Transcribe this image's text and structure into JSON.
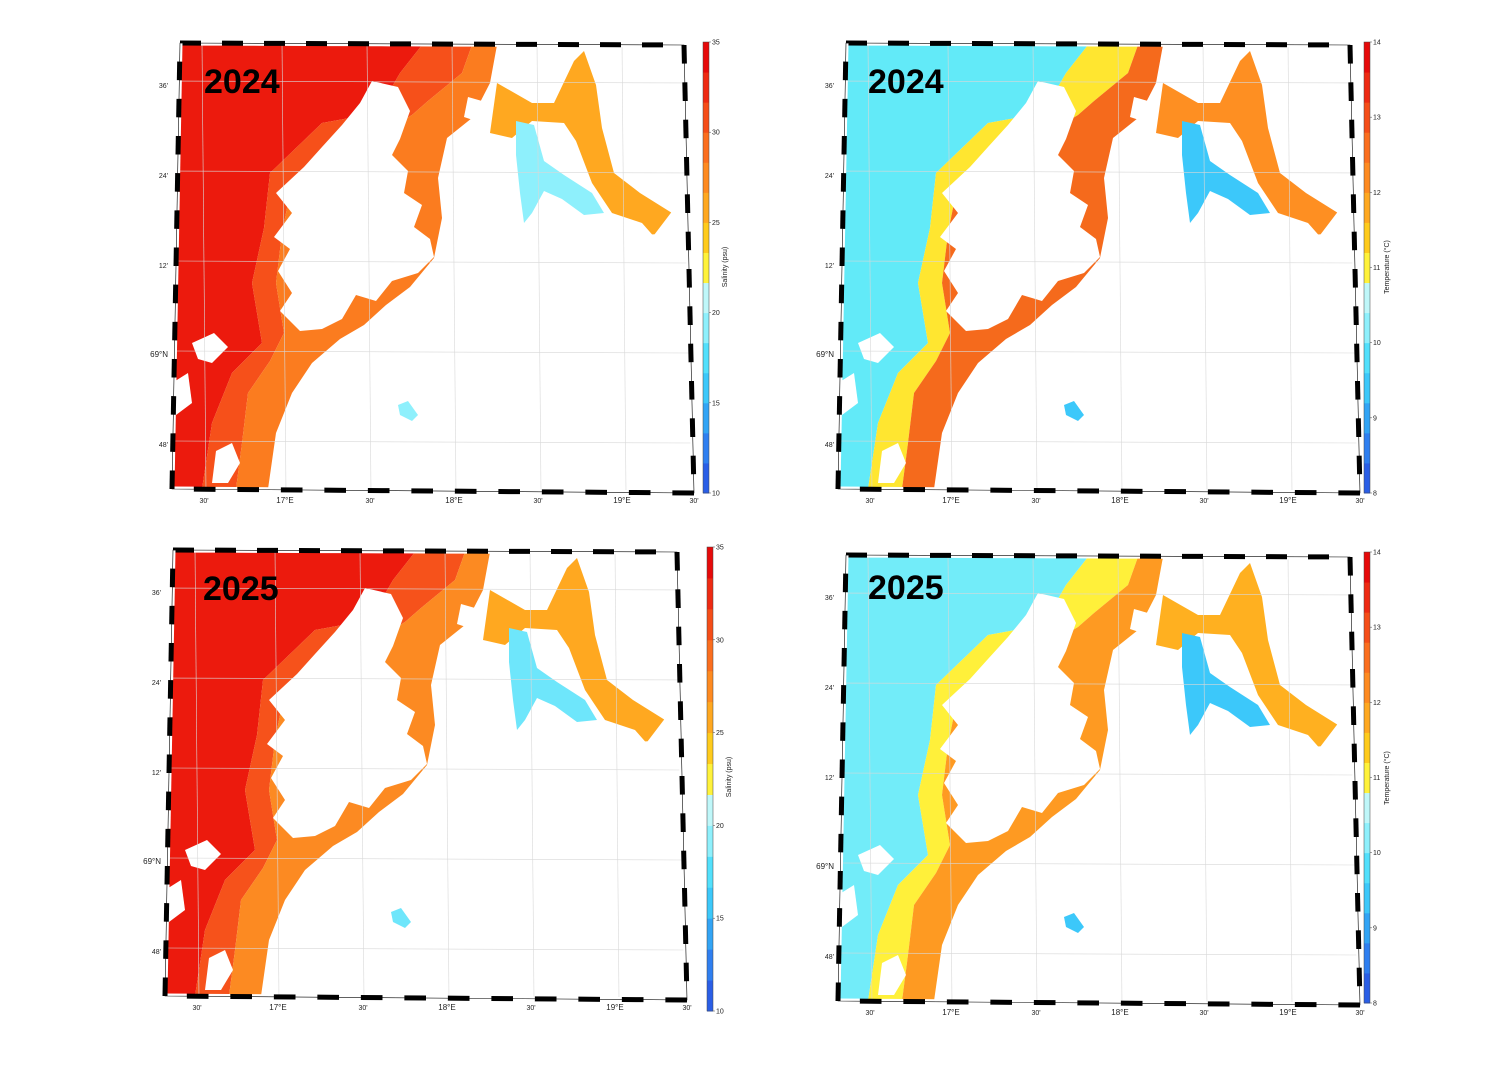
{
  "lon_labels": [
    "30'",
    "17°E",
    "30'",
    "18°E",
    "30'",
    "19°E",
    "30'"
  ],
  "lat_labels": [
    "36'",
    "24'",
    "12'",
    "69°N",
    "48'"
  ],
  "colors": {
    "land": "#ffffff",
    "frame_dark": "#000000",
    "frame_light": "#ffffff"
  },
  "salinity_scale": {
    "label": "Salinity (psu)",
    "ticks": [
      "10",
      "15",
      "20",
      "25",
      "30",
      "35"
    ],
    "colors": [
      "#2a5ee6",
      "#2f7ff0",
      "#32a4f5",
      "#3cc8fa",
      "#52e0fc",
      "#8ef0fc",
      "#bff7f9",
      "#fff23a",
      "#ffcb1c",
      "#ffa820",
      "#fe8a20",
      "#fb6e1e",
      "#f54d18",
      "#ee2a12",
      "#e60a0a"
    ]
  },
  "temperature_scale": {
    "label": "Temperature (°C)",
    "ticks": [
      "8",
      "9",
      "10",
      "11",
      "12",
      "13",
      "14"
    ],
    "colors": [
      "#2a5ee6",
      "#2f7ff0",
      "#32a4f5",
      "#3cc8fa",
      "#52e0fc",
      "#8ef0fc",
      "#bff7f9",
      "#fff23a",
      "#ffcb1c",
      "#ffa820",
      "#fe8a20",
      "#fb6e1e",
      "#f54d18",
      "#ee2a12",
      "#e60a0a"
    ]
  },
  "panels": [
    {
      "id": "salinity-2024",
      "year": "2024",
      "variable": "salinity",
      "sea": {
        "ocean": "#ec1a0d",
        "coast": "#f6501a",
        "inner": "#fb7c1f",
        "east": "#ffa820",
        "fresh": "#8ef0fc"
      }
    },
    {
      "id": "temperature-2024",
      "year": "2024",
      "variable": "temperature",
      "sea": {
        "ocean": "#62eaf8",
        "coast": "#ffe630",
        "inner": "#f56a1c",
        "east": "#fe8f22",
        "fresh": "#3cc8fa"
      }
    },
    {
      "id": "salinity-2025",
      "year": "2025",
      "variable": "salinity",
      "sea": {
        "ocean": "#ec1a0d",
        "coast": "#f6521b",
        "inner": "#fc8a22",
        "east": "#ffa820",
        "fresh": "#6ee6fb"
      }
    },
    {
      "id": "temperature-2025",
      "year": "2025",
      "variable": "temperature",
      "sea": {
        "ocean": "#72ecf9",
        "coast": "#fff03a",
        "inner": "#fe9a22",
        "east": "#ffb020",
        "fresh": "#3cc8fa"
      }
    }
  ]
}
